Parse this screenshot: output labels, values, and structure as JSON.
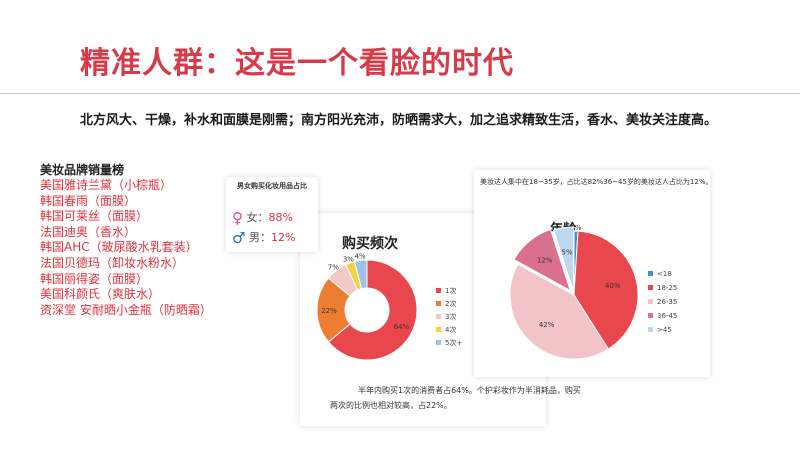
{
  "title": "精准人群：这是一个看脸的时代",
  "subtitle": "北方风大、干燥，补水和面膜是刚需；南方阳光充沛，防晒需求大，加之追求精致生活，香水、美妆关注度高。",
  "brands": {
    "heading": "美妆品牌销量榜",
    "items": [
      "美国雅诗兰黛（小棕瓶）",
      "韩国春雨（面膜）",
      "韩国可莱丝（面膜）",
      "法国迪奥（香水）",
      "韩国AHC（玻尿酸水乳套装）",
      "法国贝德玛（卸妆水粉水）",
      "韩国丽得姿（面膜）",
      "美国科颜氏（爽肤水）",
      "资深堂 安耐晒小金瓶（防晒霜）"
    ]
  },
  "gender_card": {
    "title": "男女购买化妆用品占比",
    "female_symbol": "♀",
    "female_label": "女：",
    "female_value": "88%",
    "male_symbol": "♂",
    "male_label": "男：",
    "male_value": "12%"
  },
  "frequency_card": {
    "title": "购买频次",
    "note_line1": "半年内购买1次的消费者占64%。个护彩妆作为半消耗品，购买",
    "note_line2": "两次的比例也相对较高，占22%。"
  },
  "age_card": {
    "note": "美妆达人集中在18~35岁，占比达82%36~45岁的美妆达人占比为12%。",
    "title": "年龄"
  },
  "colors": {
    "accent": "#d63b49",
    "brand_red": "#e0323d",
    "female": "#d84a8c",
    "male": "#1c6fb5"
  },
  "chart_data": [
    {
      "type": "pie",
      "title": "购买频次",
      "categories": [
        "1次",
        "2次",
        "3次",
        "4次",
        "5次+"
      ],
      "values": [
        64,
        22,
        7,
        3,
        4
      ],
      "labels": [
        "64%",
        "22%",
        "7%",
        "3%",
        "4%"
      ],
      "colors": [
        "#e8474d",
        "#ed7d31",
        "#f4c7c9",
        "#f5d244",
        "#9dc3e6"
      ],
      "legend": "right"
    },
    {
      "type": "pie",
      "title": "年龄",
      "categories": [
        "<18",
        "18-25",
        "26-35",
        "36-45",
        ">45"
      ],
      "values": [
        1,
        40,
        42,
        12,
        5
      ],
      "labels": [
        "1%",
        "40%",
        "42%",
        "12%",
        "5%"
      ],
      "colors": [
        "#4a8fc7",
        "#e8474d",
        "#f2c4c7",
        "#d9708e",
        "#bdd7ee"
      ],
      "legend": "right"
    }
  ]
}
